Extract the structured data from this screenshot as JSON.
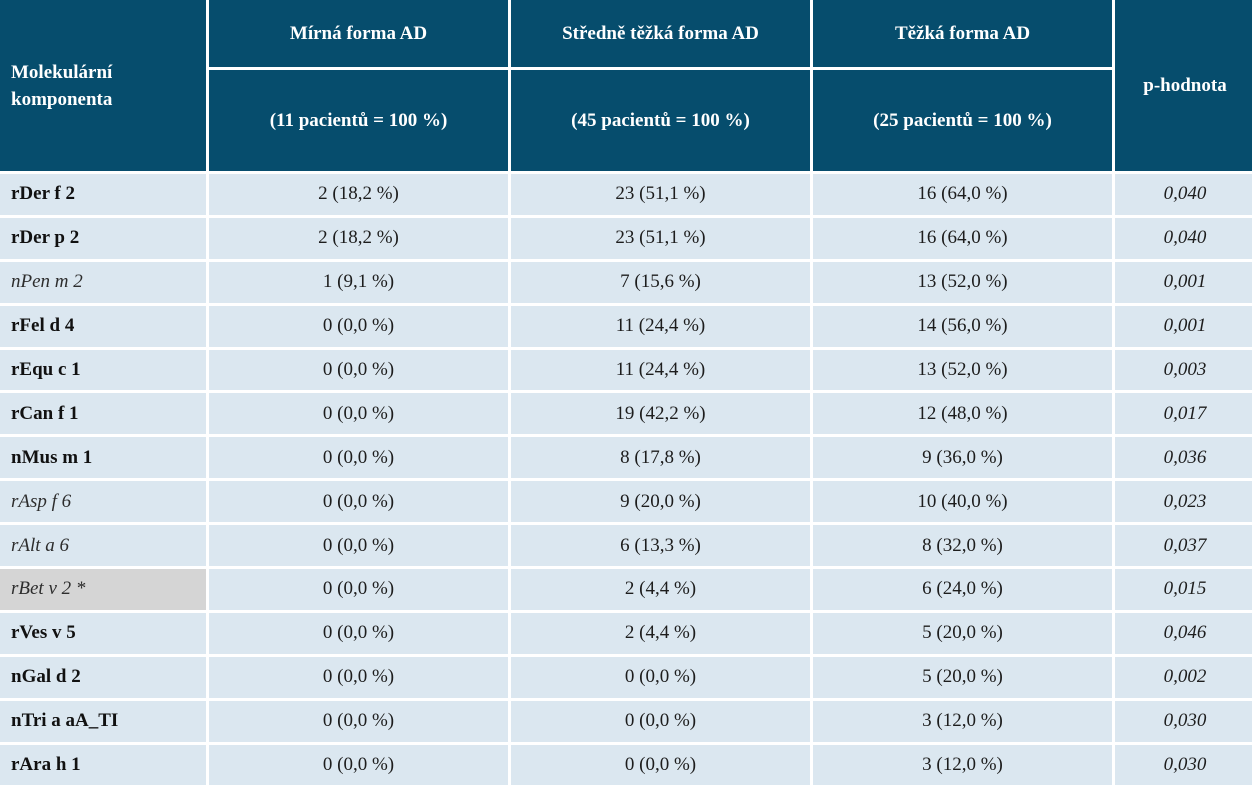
{
  "header": {
    "component_col": "Molekulární komponenta",
    "groups": [
      {
        "name": "Mírná forma AD",
        "count": "(11 pacientů = 100 %)"
      },
      {
        "name": "Středně těžká forma AD",
        "count": "(45 pacientů = 100 %)"
      },
      {
        "name": "Těžká forma AD",
        "count": "(25 pacientů = 100 %)"
      }
    ],
    "p_col": "p-hodnota"
  },
  "rows": [
    {
      "component": "rDer f 2",
      "italic": false,
      "mild": "2 (18,2 %)",
      "moderate": "23 (51,1 %)",
      "severe": "16 (64,0 %)",
      "p": "0,040"
    },
    {
      "component": "rDer p 2",
      "italic": false,
      "mild": "2 (18,2 %)",
      "moderate": "23 (51,1 %)",
      "severe": "16 (64,0 %)",
      "p": "0,040"
    },
    {
      "component": "nPen m 2",
      "italic": true,
      "mild": "1 (9,1 %)",
      "moderate": "7 (15,6 %)",
      "severe": "13 (52,0 %)",
      "p": "0,001"
    },
    {
      "component": "rFel d 4",
      "italic": false,
      "mild": "0 (0,0 %)",
      "moderate": "11 (24,4 %)",
      "severe": "14 (56,0 %)",
      "p": "0,001"
    },
    {
      "component": "rEqu c 1",
      "italic": false,
      "mild": "0 (0,0 %)",
      "moderate": "11 (24,4 %)",
      "severe": "13 (52,0 %)",
      "p": "0,003"
    },
    {
      "component": "rCan f 1",
      "italic": false,
      "mild": "0 (0,0 %)",
      "moderate": "19 (42,2 %)",
      "severe": "12 (48,0 %)",
      "p": "0,017"
    },
    {
      "component": "nMus m 1",
      "italic": false,
      "mild": "0 (0,0 %)",
      "moderate": "8 (17,8 %)",
      "severe": "9 (36,0 %)",
      "p": "0,036"
    },
    {
      "component": "rAsp f 6",
      "italic": true,
      "mild": "0 (0,0 %)",
      "moderate": "9 (20,0 %)",
      "severe": "10 (40,0 %)",
      "p": "0,023"
    },
    {
      "component": "rAlt a 6",
      "italic": true,
      "mild": "0 (0,0 %)",
      "moderate": "6 (13,3 %)",
      "severe": "8 (32,0 %)",
      "p": "0,037"
    },
    {
      "component": "rBet v 2 *",
      "italic": true,
      "highlight": "#d5d5d5",
      "mild": "0 (0,0 %)",
      "moderate": "2 (4,4 %)",
      "severe": "6 (24,0 %)",
      "p": "0,015"
    },
    {
      "component": "rVes v 5",
      "italic": false,
      "mild": "0 (0,0 %)",
      "moderate": "2 (4,4 %)",
      "severe": "5 (20,0 %)",
      "p": "0,046"
    },
    {
      "component": "nGal d 2",
      "italic": false,
      "mild": "0 (0,0 %)",
      "moderate": "0 (0,0 %)",
      "severe": "5 (20,0 %)",
      "p": "0,002"
    },
    {
      "component": "nTri a aA_TI",
      "italic": false,
      "mild": "0 (0,0 %)",
      "moderate": "0 (0,0 %)",
      "severe": "3 (12,0 %)",
      "p": "0,030"
    },
    {
      "component": "rAra h 1",
      "italic": false,
      "mild": "0 (0,0 %)",
      "moderate": "0 (0,0 %)",
      "severe": "3 (12,0 %)",
      "p": "0,030"
    }
  ],
  "colors": {
    "header_bg": "#064d6d",
    "cell_bg": "#dbe7f0",
    "highlight_bg": "#d5d5d5"
  }
}
